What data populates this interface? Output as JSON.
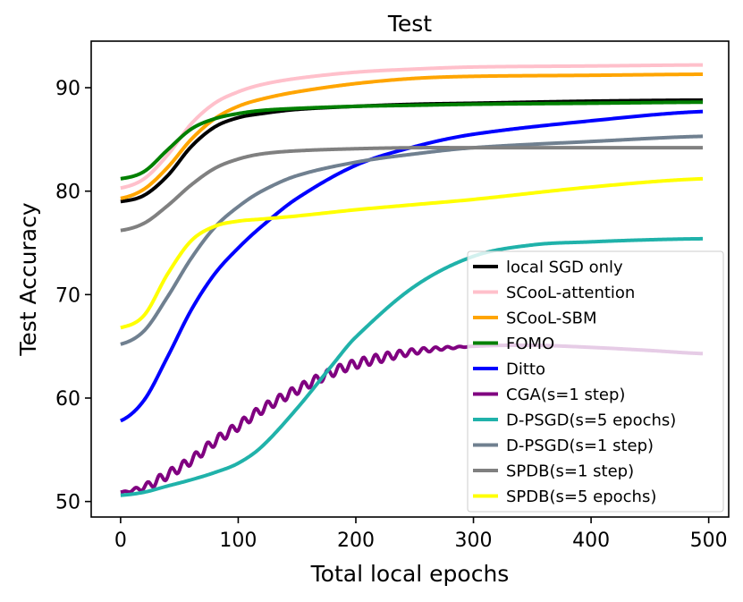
{
  "chart_data": {
    "type": "line",
    "title": "Test",
    "xlabel": "Total local epochs",
    "ylabel": "Test Accuracy",
    "xlim": [
      -25,
      517
    ],
    "ylim": [
      48.5,
      94.5
    ],
    "xticks": [
      0,
      100,
      200,
      300,
      400,
      500
    ],
    "yticks": [
      50,
      60,
      70,
      80,
      90
    ],
    "xtick_labels": [
      "0",
      "100",
      "200",
      "300",
      "400",
      "500"
    ],
    "ytick_labels": [
      "50",
      "60",
      "70",
      "80",
      "90"
    ],
    "grid": false,
    "legend_position": "lower-right",
    "series": [
      {
        "name": "local SGD only",
        "color": "#000000",
        "x": [
          0,
          20,
          40,
          60,
          80,
          100,
          120,
          150,
          200,
          250,
          300,
          400,
          495
        ],
        "y": [
          79.0,
          79.6,
          81.5,
          84.3,
          86.2,
          87.1,
          87.5,
          87.9,
          88.2,
          88.4,
          88.5,
          88.7,
          88.8
        ]
      },
      {
        "name": "SCooL-attention",
        "color": "#ffc0cb",
        "x": [
          0,
          20,
          40,
          60,
          80,
          100,
          120,
          150,
          200,
          250,
          300,
          400,
          495
        ],
        "y": [
          80.3,
          81.2,
          83.5,
          86.5,
          88.5,
          89.6,
          90.3,
          90.9,
          91.5,
          91.8,
          92.0,
          92.1,
          92.2
        ]
      },
      {
        "name": "SCooL-SBM",
        "color": "#ffa500",
        "x": [
          0,
          20,
          40,
          60,
          80,
          100,
          120,
          150,
          200,
          250,
          300,
          400,
          495
        ],
        "y": [
          79.3,
          80.2,
          82.3,
          85.0,
          87.0,
          88.2,
          88.9,
          89.6,
          90.4,
          90.9,
          91.1,
          91.2,
          91.3
        ]
      },
      {
        "name": "FOMO",
        "color": "#008000",
        "x": [
          0,
          20,
          40,
          60,
          80,
          100,
          120,
          150,
          200,
          250,
          300,
          400,
          495
        ],
        "y": [
          81.2,
          81.9,
          84.0,
          86.0,
          87.0,
          87.5,
          87.8,
          88.0,
          88.2,
          88.3,
          88.4,
          88.5,
          88.6
        ]
      },
      {
        "name": "Ditto",
        "color": "#0000ff",
        "x": [
          0,
          20,
          40,
          60,
          80,
          100,
          120,
          150,
          200,
          250,
          300,
          400,
          495
        ],
        "y": [
          57.8,
          59.8,
          64.0,
          68.5,
          72.0,
          74.5,
          76.6,
          79.3,
          82.5,
          84.3,
          85.5,
          86.8,
          87.7
        ]
      },
      {
        "name": "CGA(s=1 step)",
        "color": "#800080",
        "style": "wavy",
        "x": [
          0,
          20,
          40,
          60,
          80,
          100,
          120,
          150,
          180,
          200,
          250,
          300,
          350,
          400,
          450,
          495
        ],
        "y": [
          50.9,
          51.4,
          52.6,
          54.0,
          55.8,
          57.3,
          58.9,
          60.8,
          62.5,
          63.3,
          64.5,
          65.0,
          65.1,
          64.9,
          64.6,
          64.3
        ]
      },
      {
        "name": "D-PSGD(s=5 epochs)",
        "color": "#20b2aa",
        "x": [
          0,
          20,
          40,
          60,
          80,
          100,
          120,
          150,
          180,
          200,
          250,
          300,
          350,
          400,
          450,
          495
        ],
        "y": [
          50.6,
          50.9,
          51.5,
          52.1,
          52.8,
          53.7,
          55.3,
          59.0,
          63.2,
          65.9,
          70.8,
          73.7,
          74.8,
          75.1,
          75.3,
          75.4
        ]
      },
      {
        "name": "D-PSGD(s=1 step)",
        "color": "#708090",
        "x": [
          0,
          20,
          40,
          60,
          80,
          100,
          120,
          150,
          200,
          250,
          300,
          400,
          495
        ],
        "y": [
          65.2,
          66.5,
          69.8,
          73.5,
          76.5,
          78.5,
          80.0,
          81.5,
          82.8,
          83.6,
          84.2,
          84.8,
          85.3
        ]
      },
      {
        "name": "SPDB(s=1 step)",
        "color": "#808080",
        "x": [
          0,
          20,
          40,
          60,
          80,
          100,
          120,
          150,
          200,
          250,
          300,
          400,
          495
        ],
        "y": [
          76.2,
          76.9,
          78.6,
          80.6,
          82.2,
          83.1,
          83.6,
          83.9,
          84.1,
          84.2,
          84.2,
          84.2,
          84.2
        ]
      },
      {
        "name": "SPDB(s=5 epochs)",
        "color": "#ffff00",
        "x": [
          0,
          20,
          40,
          60,
          80,
          100,
          120,
          150,
          200,
          250,
          300,
          400,
          495
        ],
        "y": [
          66.8,
          68.0,
          72.0,
          75.2,
          76.6,
          77.1,
          77.3,
          77.6,
          78.2,
          78.7,
          79.2,
          80.4,
          81.2
        ]
      }
    ]
  }
}
